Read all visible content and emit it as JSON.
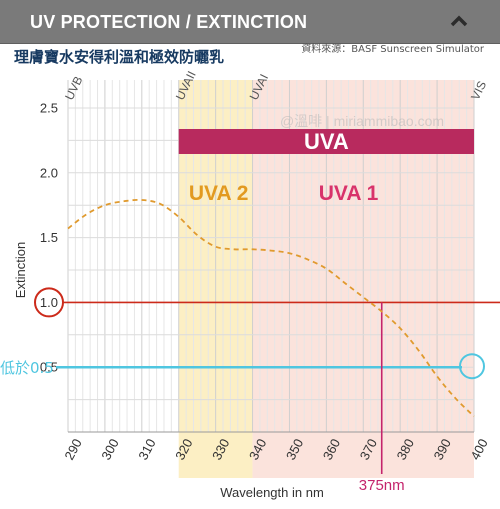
{
  "header": {
    "title": "UV PROTECTION / EXTINCTION",
    "collapse_icon": "chevron-up-icon"
  },
  "subtitle": "理膚寶水安得利溫和極效防曬乳",
  "source": "資料來源：BASF Sunscreen Simulator",
  "watermark": "@溫啡 | miriammibao.com",
  "chart_data": {
    "type": "line",
    "xlabel": "Wavelength in nm",
    "ylabel": "Extinction",
    "xlim": [
      290,
      400
    ],
    "ylim": [
      0,
      2.5
    ],
    "x_ticks": [
      290,
      300,
      310,
      320,
      330,
      340,
      350,
      360,
      370,
      380,
      390,
      400
    ],
    "x_tick_labels": [
      "290",
      "300",
      "310",
      "320",
      "330",
      "340",
      "350",
      "360",
      "370",
      "380",
      "390",
      "400"
    ],
    "y_ticks": [
      0.5,
      1.0,
      1.5,
      2.0,
      2.5
    ],
    "y_tick_labels": [
      "0.5",
      "1.0",
      "1.5",
      "2.0",
      "2.5"
    ],
    "grid": true,
    "series": [
      {
        "color": "#e09a2e",
        "style": "dashed",
        "x": [
          290,
          295,
          300,
          305,
          310,
          315,
          320,
          325,
          330,
          335,
          340,
          345,
          350,
          355,
          360,
          365,
          370,
          375,
          380,
          385,
          390,
          395,
          400
        ],
        "y": [
          1.57,
          1.68,
          1.75,
          1.78,
          1.79,
          1.76,
          1.66,
          1.52,
          1.43,
          1.41,
          1.41,
          1.4,
          1.38,
          1.33,
          1.26,
          1.15,
          1.04,
          0.93,
          0.8,
          0.63,
          0.43,
          0.26,
          0.12
        ]
      }
    ],
    "regions": [
      {
        "label": "UVA 2",
        "from": 320,
        "to": 340,
        "fill": "#fcefc4",
        "label_color": "#e29a20"
      },
      {
        "label": "UVA 1",
        "from": 340,
        "to": 400,
        "fill": "#fbe3dc",
        "label_color": "#d8336b"
      }
    ],
    "band_bar": {
      "label": "UVA",
      "from": 320,
      "to": 400,
      "color": "#b82a5e"
    },
    "top_labels": [
      {
        "text": "UVB",
        "x": 290
      },
      {
        "text": "UVAII",
        "x": 320
      },
      {
        "text": "UVAI",
        "x": 340
      },
      {
        "text": "VIS",
        "x": 400
      }
    ],
    "reference_lines": [
      {
        "axis": "y",
        "value": 1.0,
        "color": "#cc2a1a",
        "label": "1.0"
      },
      {
        "axis": "y",
        "value": 0.5,
        "color": "#4fc6e0",
        "label": "低於0.5"
      },
      {
        "axis": "x",
        "value": 375,
        "color": "#c4246c",
        "label": "375nm"
      }
    ]
  }
}
